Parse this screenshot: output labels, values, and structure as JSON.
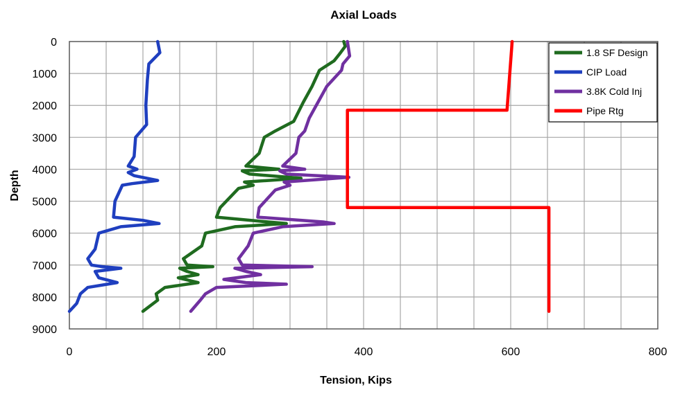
{
  "chart_data": {
    "type": "line",
    "title": "Axial Loads",
    "xlabel": "Tension, Kips",
    "ylabel": "Depth",
    "xlim": [
      0,
      800
    ],
    "ylim": [
      0,
      9000
    ],
    "y_inverted": true,
    "x_ticks": [
      "0",
      "200",
      "400",
      "600",
      "800"
    ],
    "y_ticks": [
      "0",
      "1000",
      "2000",
      "3000",
      "4000",
      "5000",
      "6000",
      "7000",
      "8000",
      "9000"
    ],
    "grid": true,
    "legend_position": "top-right",
    "series": [
      {
        "name": "1.8 SF Design",
        "color": "#1f6b1f",
        "points": [
          [
            373,
            0
          ],
          [
            375,
            150
          ],
          [
            367,
            400
          ],
          [
            360,
            600
          ],
          [
            340,
            900
          ],
          [
            330,
            1400
          ],
          [
            318,
            1900
          ],
          [
            305,
            2500
          ],
          [
            280,
            2800
          ],
          [
            265,
            3000
          ],
          [
            258,
            3500
          ],
          [
            240,
            3900
          ],
          [
            285,
            4000
          ],
          [
            235,
            4050
          ],
          [
            245,
            4150
          ],
          [
            315,
            4280
          ],
          [
            238,
            4400
          ],
          [
            250,
            4500
          ],
          [
            230,
            4600
          ],
          [
            205,
            5200
          ],
          [
            200,
            5500
          ],
          [
            270,
            5650
          ],
          [
            295,
            5700
          ],
          [
            225,
            5800
          ],
          [
            185,
            6000
          ],
          [
            180,
            6400
          ],
          [
            155,
            6800
          ],
          [
            160,
            7000
          ],
          [
            195,
            7050
          ],
          [
            150,
            7100
          ],
          [
            160,
            7200
          ],
          [
            175,
            7300
          ],
          [
            148,
            7400
          ],
          [
            175,
            7550
          ],
          [
            130,
            7700
          ],
          [
            118,
            7900
          ],
          [
            120,
            8100
          ],
          [
            100,
            8450
          ]
        ]
      },
      {
        "name": "CIP Load",
        "color": "#1f3fbf",
        "points": [
          [
            120,
            0
          ],
          [
            123,
            350
          ],
          [
            108,
            700
          ],
          [
            106,
            1200
          ],
          [
            104,
            2000
          ],
          [
            105,
            2600
          ],
          [
            90,
            3000
          ],
          [
            88,
            3600
          ],
          [
            80,
            3900
          ],
          [
            92,
            4000
          ],
          [
            80,
            4100
          ],
          [
            88,
            4200
          ],
          [
            120,
            4350
          ],
          [
            85,
            4450
          ],
          [
            72,
            4500
          ],
          [
            62,
            5000
          ],
          [
            60,
            5500
          ],
          [
            100,
            5600
          ],
          [
            122,
            5700
          ],
          [
            70,
            5800
          ],
          [
            40,
            6000
          ],
          [
            35,
            6500
          ],
          [
            25,
            6800
          ],
          [
            30,
            7000
          ],
          [
            45,
            7050
          ],
          [
            70,
            7100
          ],
          [
            35,
            7200
          ],
          [
            40,
            7400
          ],
          [
            65,
            7550
          ],
          [
            25,
            7700
          ],
          [
            15,
            7900
          ],
          [
            10,
            8200
          ],
          [
            0,
            8450
          ]
        ]
      },
      {
        "name": "3.8K Cold Inj",
        "color": "#7030a0",
        "points": [
          [
            378,
            0
          ],
          [
            381,
            450
          ],
          [
            372,
            700
          ],
          [
            370,
            900
          ],
          [
            350,
            1400
          ],
          [
            338,
            1900
          ],
          [
            326,
            2400
          ],
          [
            320,
            2800
          ],
          [
            312,
            3000
          ],
          [
            308,
            3500
          ],
          [
            290,
            3900
          ],
          [
            320,
            4000
          ],
          [
            286,
            4050
          ],
          [
            295,
            4150
          ],
          [
            380,
            4250
          ],
          [
            292,
            4400
          ],
          [
            300,
            4500
          ],
          [
            280,
            4650
          ],
          [
            258,
            5200
          ],
          [
            256,
            5500
          ],
          [
            345,
            5650
          ],
          [
            360,
            5700
          ],
          [
            290,
            5800
          ],
          [
            250,
            6000
          ],
          [
            243,
            6400
          ],
          [
            230,
            6800
          ],
          [
            235,
            7000
          ],
          [
            330,
            7050
          ],
          [
            225,
            7100
          ],
          [
            240,
            7200
          ],
          [
            260,
            7300
          ],
          [
            210,
            7450
          ],
          [
            240,
            7550
          ],
          [
            295,
            7600
          ],
          [
            200,
            7700
          ],
          [
            185,
            7900
          ],
          [
            178,
            8100
          ],
          [
            165,
            8450
          ]
        ]
      },
      {
        "name": "Pipe Rtg",
        "color": "#ff0000",
        "points": [
          [
            602,
            0
          ],
          [
            595,
            2150
          ],
          [
            378,
            2150
          ],
          [
            378,
            5200
          ],
          [
            652,
            5200
          ],
          [
            652,
            8450
          ]
        ]
      }
    ]
  }
}
